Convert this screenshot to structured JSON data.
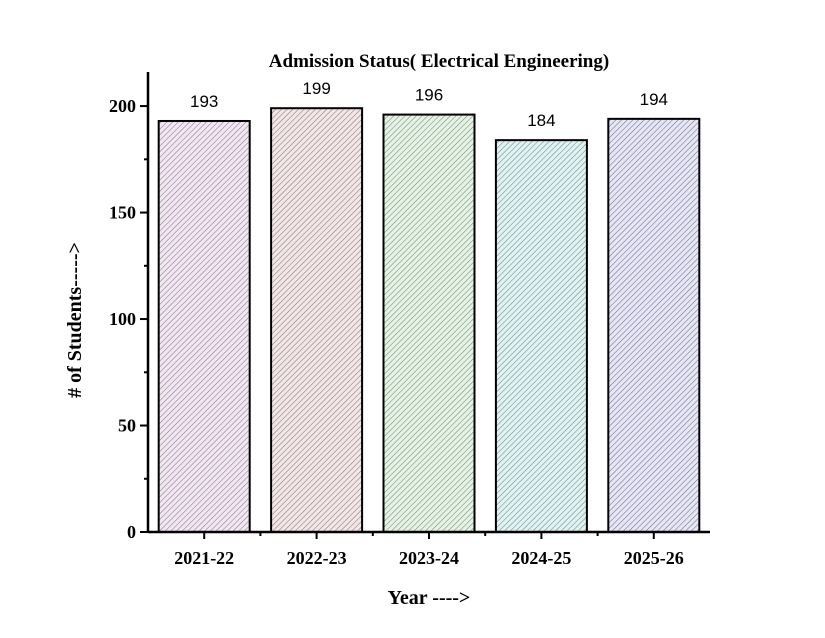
{
  "chart_data": {
    "type": "bar",
    "title": "Admission Status( Electrical Engineering)",
    "xlabel": "Year ---->",
    "ylabel": "# of Students----->",
    "categories": [
      "2021-22",
      "2022-23",
      "2023-24",
      "2024-25",
      "2025-26"
    ],
    "values": [
      193,
      199,
      196,
      184,
      194
    ],
    "data_labels": [
      "193",
      "199",
      "196",
      "184",
      "194"
    ],
    "ylim": [
      0,
      216
    ],
    "yticks": [
      0,
      50,
      100,
      150,
      200
    ],
    "ytick_labels": [
      "0",
      "50",
      "100",
      "150",
      "200"
    ],
    "y_minor_step": 25,
    "grid": false,
    "legend": "none",
    "bar_fill_colors": [
      "#f3e6f3",
      "#f3e6e6",
      "#e4f3e4",
      "#e0f3f3",
      "#e6e6f5"
    ],
    "hatch_colors": [
      "#8a7a8a",
      "#8a7a7a",
      "#7a8a7a",
      "#6f8a8a",
      "#6f6f8f"
    ],
    "axis_color": "#000000"
  }
}
